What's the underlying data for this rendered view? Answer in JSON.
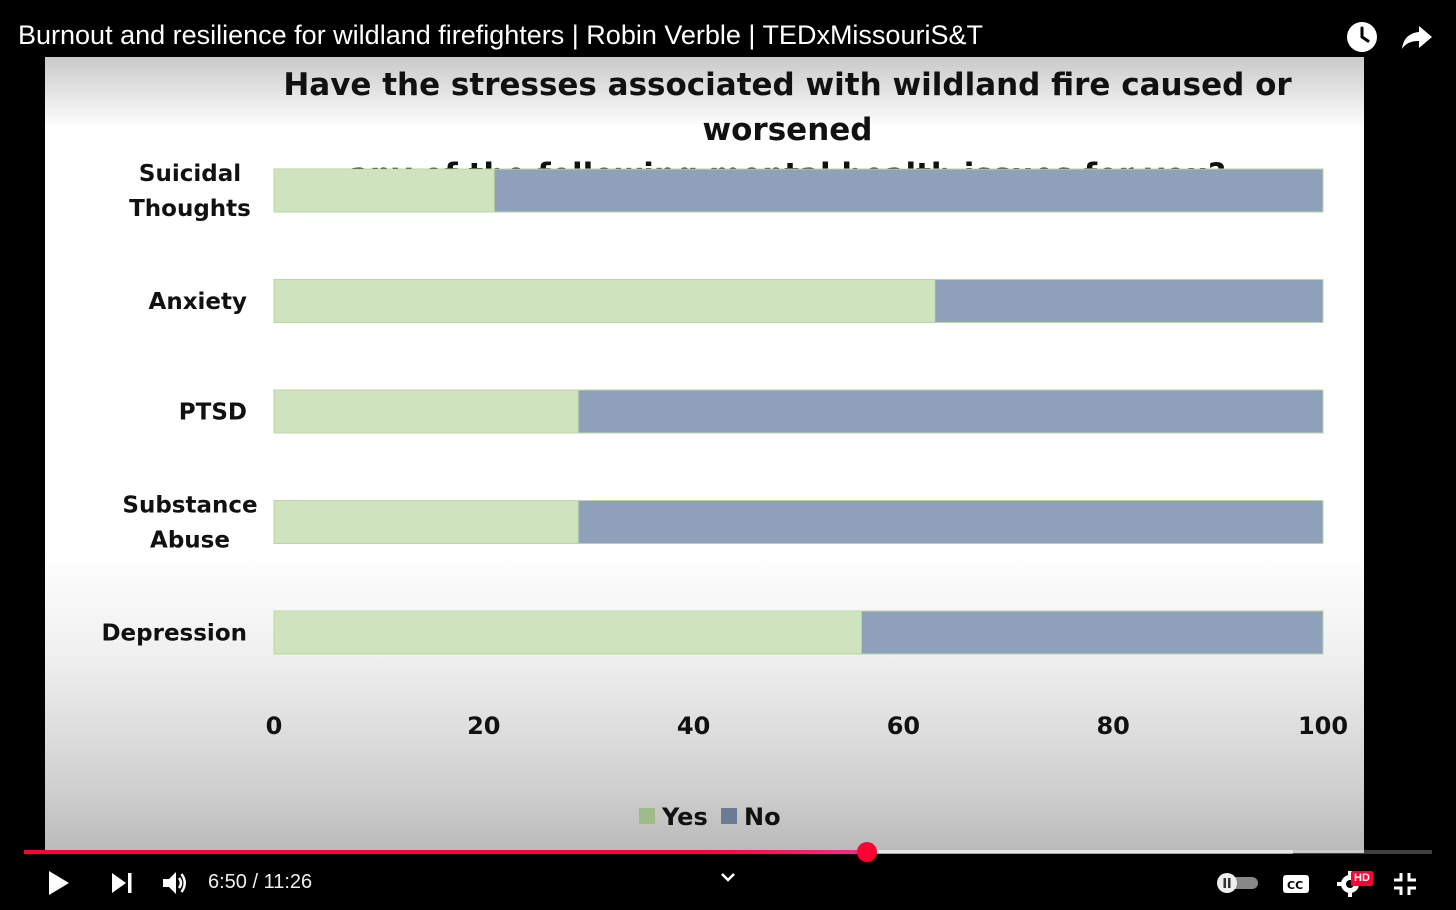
{
  "video": {
    "title": "Burnout and resilience for wildland firefighters | Robin Verble | TEDxMissouriS&T"
  },
  "top_icons": [
    "watch-later-icon",
    "share-icon"
  ],
  "slide": {
    "title_line1": "Have the stresses associated with wildland fire caused or worsened",
    "title_line2": "any of the following mental health issues for you?"
  },
  "chart_data": {
    "type": "bar",
    "orientation": "horizontal",
    "stacked": true,
    "title": "Have the stresses associated with wildland fire caused or worsened any of the following mental health issues for you?",
    "categories": [
      [
        "Suicidal",
        "Thoughts"
      ],
      [
        "Anxiety"
      ],
      [
        "PTSD"
      ],
      [
        "Substance",
        "Abuse"
      ],
      [
        "Depression"
      ]
    ],
    "series": [
      {
        "name": "Yes",
        "color": "#cfe4be",
        "values": [
          21,
          63,
          29,
          29,
          56
        ]
      },
      {
        "name": "No",
        "color": "#8fa1ba",
        "values": [
          79,
          37,
          71,
          71,
          44
        ]
      }
    ],
    "xlim": [
      0,
      100
    ],
    "xticks": [
      "0",
      "20",
      "40",
      "60",
      "80",
      "100"
    ],
    "legend_position": "bottom",
    "grid": false
  },
  "player": {
    "current_time": "6:50",
    "duration": "11:26",
    "time_display": "6:50 / 11:26",
    "played_fraction": 0.5986,
    "buffered_fraction": 0.9014,
    "accent_color": "#ff0033",
    "hd_badge": "HD",
    "buttons": [
      "play-icon",
      "next-icon",
      "volume-icon",
      "chevron-down-icon",
      "autoplay-toggle",
      "captions-icon",
      "settings-icon",
      "exit-fullscreen-icon"
    ]
  }
}
